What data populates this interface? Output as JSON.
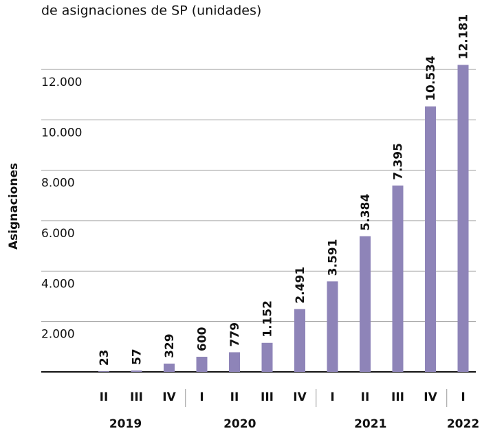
{
  "chart_data": {
    "type": "bar",
    "title": "de asignaciones de SP (unidades)",
    "y_label": "Asignaciones",
    "categories": [
      "II",
      "III",
      "IV",
      "I",
      "II",
      "III",
      "IV",
      "I",
      "II",
      "III",
      "IV",
      "I"
    ],
    "years": [
      "2019",
      "2020",
      "2021",
      "2022"
    ],
    "values": [
      23,
      57,
      329,
      600,
      779,
      1152,
      2491,
      3591,
      5384,
      7395,
      10534,
      12181
    ],
    "value_labels": [
      "23",
      "57",
      "329",
      "600",
      "779",
      "1.152",
      "2.491",
      "3.591",
      "5.384",
      "7.395",
      "10.534",
      "12.181"
    ],
    "color": "#8e84b8",
    "ylim": [
      0,
      13000
    ],
    "yticks": [
      {
        "value": 2000,
        "label": "2.000"
      },
      {
        "value": 4000,
        "label": "4.000"
      },
      {
        "value": 6000,
        "label": "6.000"
      },
      {
        "value": 8000,
        "label": "8.000"
      },
      {
        "value": 10000,
        "label": "10.000"
      },
      {
        "value": 12000,
        "label": "12.000"
      }
    ],
    "grid": true
  }
}
